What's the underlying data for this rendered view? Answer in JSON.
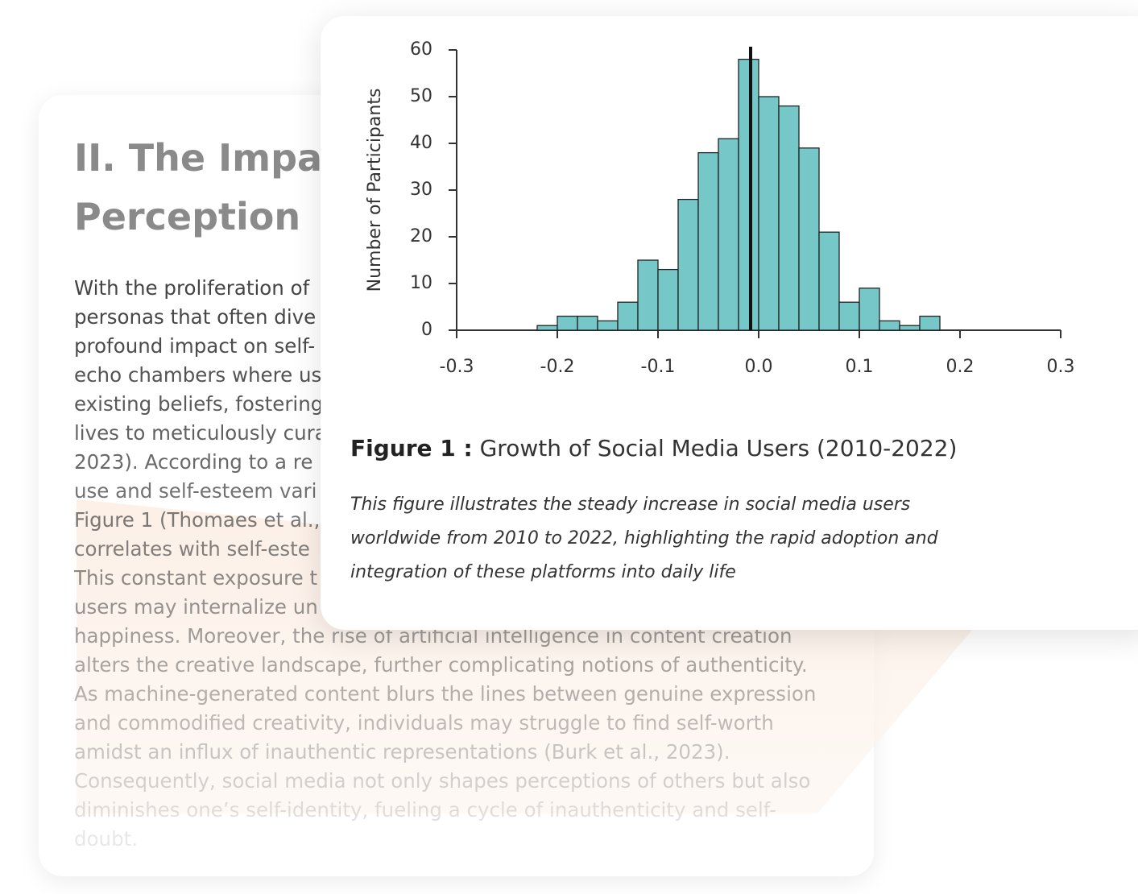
{
  "document": {
    "heading": [
      "II. The Impact",
      "Perception"
    ],
    "body_lines": [
      "With the proliferation of",
      "personas that often dive",
      "profound impact on self-",
      "echo chambers where us",
      "existing beliefs, fostering",
      "lives to meticulously cura",
      "2023). According to a re",
      "use and self-esteem vari",
      "Figure 1 (Thomaes et al.,",
      "correlates with self-este",
      "This constant exposure t",
      "users may internalize un",
      "happiness. Moreover, the rise of artificial intelligence in content creation",
      "alters the creative landscape, further complicating notions of authenticity.",
      "As machine-generated content blurs the lines between genuine expression",
      "and commodified creativity, individuals may struggle to find self-worth",
      "amidst an influx of inauthentic representations (Burk et al., 2023).",
      "Consequently, social media not only shapes perceptions of others but also",
      "diminishes one’s self-identity, fueling a cycle of inauthenticity and self-",
      "doubt."
    ]
  },
  "figure": {
    "label": "Figure 1 :",
    "title": "Growth of Social Media Users (2010-2022)",
    "description": "This figure illustrates the steady increase in social media users worldwide from 2010 to 2022, highlighting the rapid adoption and integration of these platforms into daily life"
  },
  "chart_data": {
    "type": "histogram",
    "y_label": "Number of Participants",
    "bins": [
      -0.22,
      -0.2,
      -0.18,
      -0.16,
      -0.14,
      -0.12,
      -0.1,
      -0.08,
      -0.06,
      -0.04,
      -0.02,
      0,
      0.02,
      0.04,
      0.06,
      0.08,
      0.1,
      0.12,
      0.14,
      0.16,
      0.18
    ],
    "values": [
      1,
      3,
      3,
      2,
      6,
      15,
      13,
      28,
      38,
      41,
      58,
      50,
      48,
      39,
      21,
      6,
      9,
      2,
      1,
      3
    ],
    "color": "#76c8c8",
    "vline": -0.008,
    "xlim": [
      -0.3,
      0.3
    ],
    "xticks": [
      -0.3,
      -0.2,
      -0.1,
      {
        "value": 0,
        "label": "0.0"
      },
      0.1,
      0.2,
      0.3
    ],
    "ylim": [
      0,
      60
    ],
    "yticks": [
      0,
      10,
      20,
      30,
      40,
      50,
      60
    ]
  }
}
